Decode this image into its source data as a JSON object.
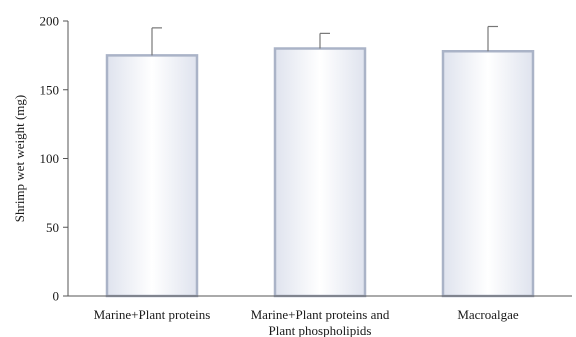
{
  "chart_data": {
    "type": "bar",
    "title": "",
    "xlabel": "",
    "ylabel": "Shrimp wet weight (mg)",
    "ylim": [
      0,
      200
    ],
    "yticks": [
      0,
      50,
      100,
      150,
      200
    ],
    "grid": false,
    "categories": [
      [
        "Marine+Plant proteins"
      ],
      [
        "Marine+Plant proteins and",
        "Plant phospholipids"
      ],
      [
        "Macroalgae"
      ]
    ],
    "values": [
      175,
      180,
      178
    ],
    "errors": [
      20,
      11,
      18
    ],
    "colors": {
      "bar_fill_edge": "#e6e9f2",
      "bar_fill_center": "#ffffff",
      "bar_stroke": "#aab3c7",
      "error_bar": "#777777",
      "axis": "#555555"
    }
  }
}
